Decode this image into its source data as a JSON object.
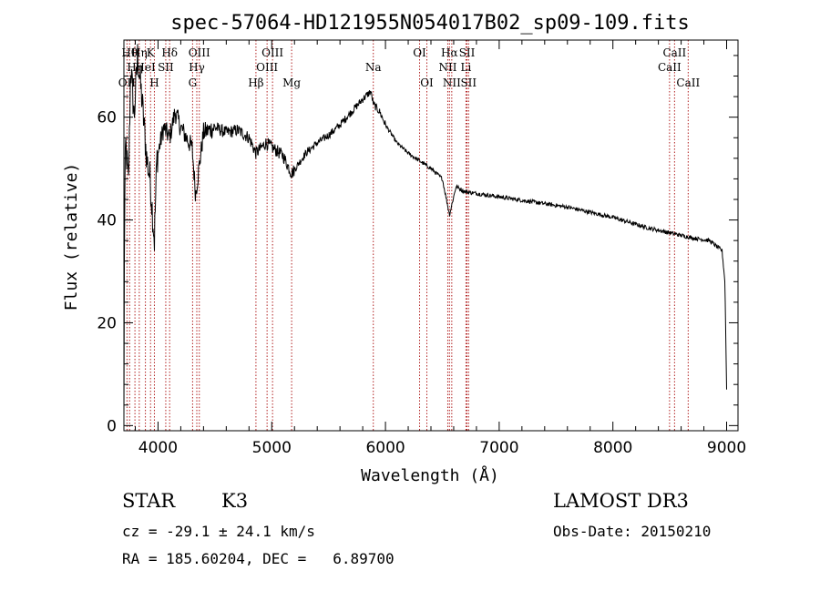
{
  "chart_data": {
    "type": "line",
    "title": "spec-57064-HD121955N054017B02_sp09-109.fits",
    "xlabel": "Wavelength (Å)",
    "ylabel": "Flux (relative)",
    "xlim": [
      3700,
      9100
    ],
    "ylim": [
      -1,
      75
    ],
    "x_ticks": [
      4000,
      5000,
      6000,
      7000,
      8000,
      9000
    ],
    "y_ticks": [
      0,
      20,
      40,
      60
    ],
    "line_color": "#000000",
    "marker_color": "#b22222",
    "spectrum_anchors": [
      {
        "x": 3700,
        "y": 1
      },
      {
        "x": 3705,
        "y": 40
      },
      {
        "x": 3715,
        "y": 55
      },
      {
        "x": 3740,
        "y": 47
      },
      {
        "x": 3760,
        "y": 70
      },
      {
        "x": 3790,
        "y": 60
      },
      {
        "x": 3820,
        "y": 72
      },
      {
        "x": 3860,
        "y": 63
      },
      {
        "x": 3900,
        "y": 52
      },
      {
        "x": 3930,
        "y": 48
      },
      {
        "x": 3968,
        "y": 36
      },
      {
        "x": 3990,
        "y": 52
      },
      {
        "x": 4050,
        "y": 58
      },
      {
        "x": 4102,
        "y": 56
      },
      {
        "x": 4150,
        "y": 61
      },
      {
        "x": 4200,
        "y": 58
      },
      {
        "x": 4300,
        "y": 54
      },
      {
        "x": 4330,
        "y": 45
      },
      {
        "x": 4400,
        "y": 57
      },
      {
        "x": 4500,
        "y": 58
      },
      {
        "x": 4600,
        "y": 57
      },
      {
        "x": 4700,
        "y": 57.5
      },
      {
        "x": 4800,
        "y": 56
      },
      {
        "x": 4861,
        "y": 53
      },
      {
        "x": 4950,
        "y": 55
      },
      {
        "x": 5100,
        "y": 52.5
      },
      {
        "x": 5175,
        "y": 49
      },
      {
        "x": 5300,
        "y": 53
      },
      {
        "x": 5400,
        "y": 55
      },
      {
        "x": 5500,
        "y": 56.5
      },
      {
        "x": 5600,
        "y": 58.5
      },
      {
        "x": 5700,
        "y": 61
      },
      {
        "x": 5800,
        "y": 63.5
      },
      {
        "x": 5870,
        "y": 65
      },
      {
        "x": 5895,
        "y": 62.5
      },
      {
        "x": 5950,
        "y": 61
      },
      {
        "x": 6000,
        "y": 58.5
      },
      {
        "x": 6100,
        "y": 55
      },
      {
        "x": 6200,
        "y": 53
      },
      {
        "x": 6300,
        "y": 51.5
      },
      {
        "x": 6400,
        "y": 50
      },
      {
        "x": 6500,
        "y": 48
      },
      {
        "x": 6563,
        "y": 41
      },
      {
        "x": 6620,
        "y": 46.5
      },
      {
        "x": 6700,
        "y": 45.5
      },
      {
        "x": 7000,
        "y": 44.5
      },
      {
        "x": 7300,
        "y": 43.5
      },
      {
        "x": 7600,
        "y": 42.5
      },
      {
        "x": 8000,
        "y": 40.5
      },
      {
        "x": 8300,
        "y": 38.5
      },
      {
        "x": 8500,
        "y": 37.5
      },
      {
        "x": 8700,
        "y": 36.5
      },
      {
        "x": 8850,
        "y": 36
      },
      {
        "x": 8960,
        "y": 34
      },
      {
        "x": 8985,
        "y": 28
      },
      {
        "x": 9000,
        "y": 7
      }
    ],
    "line_markers": [
      {
        "wave": 3727,
        "label": "OII",
        "row": 2
      },
      {
        "wave": 3750,
        "label": "Hθ",
        "row": 0
      },
      {
        "wave": 3797,
        "label": "Hη",
        "row": 1
      },
      {
        "wave": 3835,
        "label": "Hη",
        "row": 0
      },
      {
        "wave": 3889,
        "label": "HeI",
        "row": 1
      },
      {
        "wave": 3934,
        "label": "K",
        "row": 0
      },
      {
        "wave": 3968,
        "label": "H",
        "row": 2
      },
      {
        "wave": 4068,
        "label": "SII",
        "row": 1
      },
      {
        "wave": 4102,
        "label": "Hδ",
        "row": 0
      },
      {
        "wave": 4304,
        "label": "G",
        "row": 2
      },
      {
        "wave": 4341,
        "label": "Hγ",
        "row": 1
      },
      {
        "wave": 4363,
        "label": "OIII",
        "row": 0
      },
      {
        "wave": 4861,
        "label": "Hβ",
        "row": 2
      },
      {
        "wave": 4959,
        "label": "OIII",
        "row": 1
      },
      {
        "wave": 5007,
        "label": "OIII",
        "row": 0
      },
      {
        "wave": 5175,
        "label": "Mg",
        "row": 2
      },
      {
        "wave": 5893,
        "label": "Na",
        "row": 1
      },
      {
        "wave": 6300,
        "label": "OI",
        "row": 0
      },
      {
        "wave": 6364,
        "label": "OI",
        "row": 2
      },
      {
        "wave": 6548,
        "label": "NII",
        "row": 1
      },
      {
        "wave": 6563,
        "label": "Hα",
        "row": 0
      },
      {
        "wave": 6583,
        "label": "NII",
        "row": 2
      },
      {
        "wave": 6708,
        "label": "Li",
        "row": 1
      },
      {
        "wave": 6717,
        "label": "SII",
        "row": 0
      },
      {
        "wave": 6731,
        "label": "SII",
        "row": 2
      },
      {
        "wave": 8498,
        "label": "CaII",
        "row": 1
      },
      {
        "wave": 8542,
        "label": "CaII",
        "row": 0
      },
      {
        "wave": 8662,
        "label": "CaII",
        "row": 2
      }
    ]
  },
  "info": {
    "class": "STAR",
    "subclass": "K3",
    "survey": "LAMOST DR3",
    "redshift": "cz = -29.1 ± 24.1 km/s",
    "obs_date": "Obs-Date: 20150210",
    "coords": "RA = 185.60204, DEC =   6.89700"
  }
}
